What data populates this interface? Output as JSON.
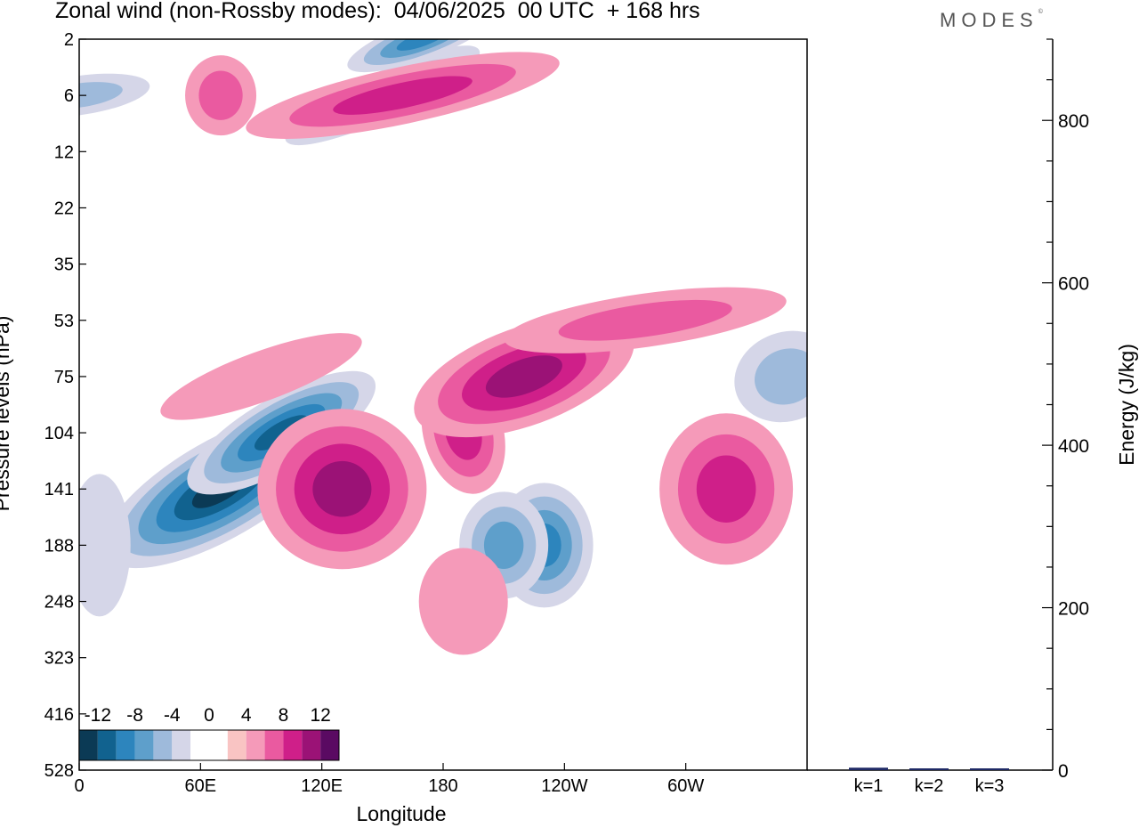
{
  "figure": {
    "title": "Zonal wind (non-Rossby modes):  04/06/2025  00 UTC  + 168 hrs",
    "brand": "MODES",
    "brand_mark": "©"
  },
  "chart_data": [
    {
      "type": "heatmap",
      "xlabel": "Longitude",
      "ylabel": "Pressure levels (hPa)",
      "x_ticks": [
        "0",
        "60E",
        "120E",
        "180",
        "120W",
        "60W"
      ],
      "y_ticks": [
        "2",
        "6",
        "12",
        "22",
        "35",
        "53",
        "75",
        "104",
        "141",
        "188",
        "248",
        "323",
        "416",
        "528"
      ],
      "colorbar": {
        "labels": [
          "-12",
          "-8",
          "-4",
          "0",
          "4",
          "8",
          "12"
        ],
        "colors": [
          "#0b3a55",
          "#11628f",
          "#2d85bd",
          "#5e9fcb",
          "#9ebadb",
          "#d5d6e8",
          "#ffffff",
          "#ffffff",
          "#f9c4c3",
          "#f59ab9",
          "#ea5aa0",
          "#cf1f89",
          "#9b1276",
          "#5a0a62"
        ]
      },
      "regions": [
        {
          "value": -6,
          "center": [
            "0",
            "6"
          ]
        },
        {
          "value": -8,
          "center": [
            "150E",
            "6"
          ]
        },
        {
          "value": -10,
          "center": [
            "170E",
            "2"
          ]
        },
        {
          "value": -6,
          "center": [
            "160W",
            "8"
          ]
        },
        {
          "value": -14,
          "center": [
            "70E",
            "141"
          ]
        },
        {
          "value": -12,
          "center": [
            "100E",
            "104"
          ]
        },
        {
          "value": -10,
          "center": [
            "130W",
            "188"
          ]
        },
        {
          "value": -8,
          "center": [
            "150W",
            "188"
          ]
        },
        {
          "value": -6,
          "center": [
            "10W",
            "75"
          ]
        },
        {
          "value": -4,
          "center": [
            "10E",
            "188"
          ]
        },
        {
          "value": 6,
          "center": [
            "70E",
            "6"
          ]
        },
        {
          "value": 8,
          "center": [
            "160E",
            "6"
          ]
        },
        {
          "value": 8,
          "center": [
            "170W",
            "104"
          ]
        },
        {
          "value": 10,
          "center": [
            "140W",
            "75"
          ]
        },
        {
          "value": 10,
          "center": [
            "130E",
            "141"
          ]
        },
        {
          "value": 8,
          "center": [
            "40W",
            "141"
          ]
        },
        {
          "value": 6,
          "center": [
            "80W",
            "53"
          ]
        },
        {
          "value": 4,
          "center": [
            "90E",
            "75"
          ]
        },
        {
          "value": 4,
          "center": [
            "170W",
            "248"
          ]
        }
      ]
    },
    {
      "type": "bar",
      "ylabel": "Energy (J/kg)",
      "categories": [
        "k=1",
        "k=2",
        "k=3"
      ],
      "values": [
        3,
        2,
        1
      ],
      "ylim": [
        0,
        900
      ],
      "y_ticks": [
        0,
        200,
        400,
        600,
        800
      ],
      "bar_color": "#1f2a66"
    }
  ]
}
